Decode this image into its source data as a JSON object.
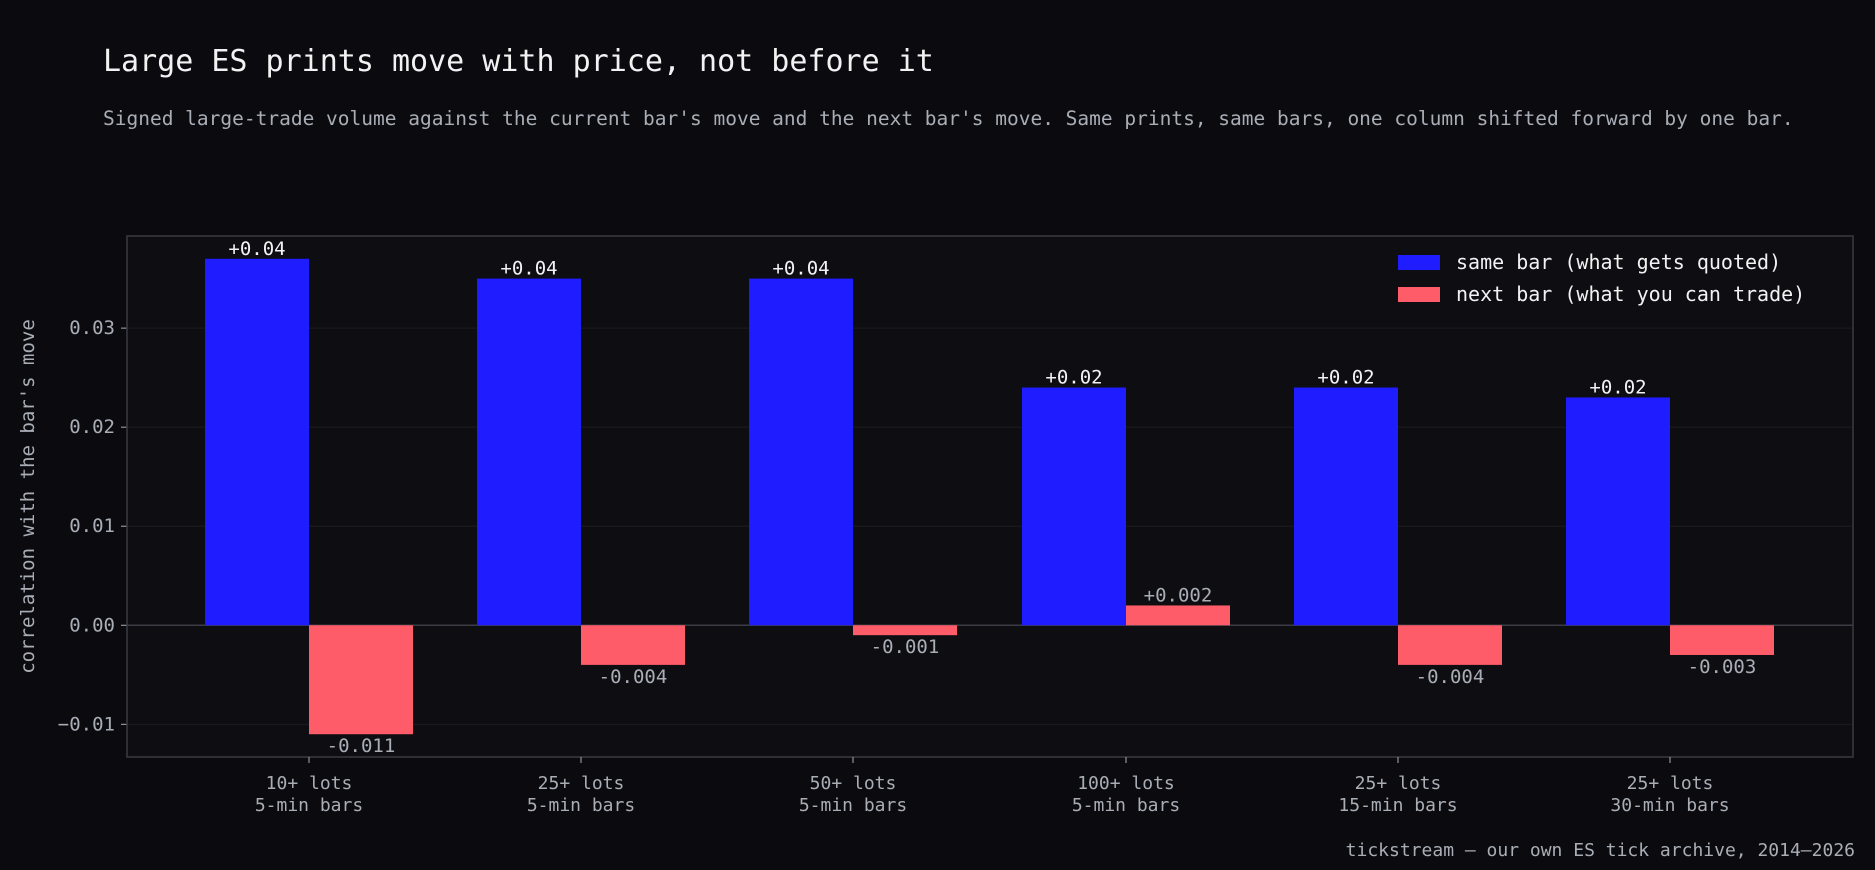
{
  "title": "Large ES prints move with price, not before it",
  "subtitle": "Signed large-trade volume against the current bar's move and the next bar's move. Same prints, same bars, one column shifted forward by one bar.",
  "footer": "tickstream — our own ES tick archive, 2014–2026",
  "colors": {
    "background": "#0b0b0f",
    "plot_background": "#0e0e12",
    "same_bar": "#1f1cff",
    "next_bar": "#ff5c69",
    "text": "#f2f2f2",
    "muted_text": "#a9adb6",
    "grid": "#1b1b22",
    "frame": "#3a3a42"
  },
  "chart_data": {
    "type": "bar",
    "categories": [
      [
        "10+ lots",
        "5-min bars"
      ],
      [
        "25+ lots",
        "5-min bars"
      ],
      [
        "50+ lots",
        "5-min bars"
      ],
      [
        "100+ lots",
        "5-min bars"
      ],
      [
        "25+ lots",
        "15-min bars"
      ],
      [
        "25+ lots",
        "30-min bars"
      ]
    ],
    "series": [
      {
        "name": "same bar (what gets quoted)",
        "values": [
          0.037,
          0.035,
          0.035,
          0.024,
          0.024,
          0.023
        ],
        "labels": [
          "+0.04",
          "+0.04",
          "+0.04",
          "+0.02",
          "+0.02",
          "+0.02"
        ]
      },
      {
        "name": "next bar (what you can trade)",
        "values": [
          -0.011,
          -0.004,
          -0.001,
          0.002,
          -0.004,
          -0.003
        ],
        "labels": [
          "-0.011",
          "-0.004",
          "-0.001",
          "+0.002",
          "-0.004",
          "-0.003"
        ]
      }
    ],
    "xlabel": "",
    "ylabel": "correlation with the bar's move",
    "ylim": [
      -0.0133,
      0.0393
    ],
    "yticks": [
      -0.01,
      0.0,
      0.01,
      0.02,
      0.03
    ],
    "ytick_labels": [
      "−0.01",
      "0.00",
      "0.01",
      "0.02",
      "0.03"
    ],
    "grid": true,
    "legend": "top-right"
  }
}
